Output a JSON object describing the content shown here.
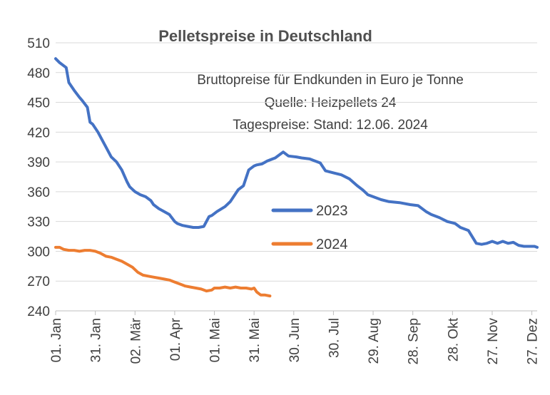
{
  "chart_data": {
    "type": "line",
    "title": "Pelletspreise in Deutschland",
    "subtitle_lines": [
      "Bruttopreise für Endkunden in Euro je Tonne",
      "Quelle: Heizpellets 24",
      "Tagespreise: Stand: 12.06. 2024"
    ],
    "xlabel": "",
    "ylabel": "",
    "ylim": [
      240,
      510
    ],
    "yticks": [
      240,
      270,
      300,
      330,
      360,
      390,
      420,
      450,
      480,
      510
    ],
    "xlim": [
      0,
      364
    ],
    "xticks": [
      {
        "day": 0,
        "label": "01. Jan"
      },
      {
        "day": 30,
        "label": "31. Jan"
      },
      {
        "day": 60,
        "label": "02. Mär"
      },
      {
        "day": 90,
        "label": "01. Apr"
      },
      {
        "day": 120,
        "label": "01. Mai"
      },
      {
        "day": 150,
        "label": "31. Mai"
      },
      {
        "day": 180,
        "label": "30. Jun"
      },
      {
        "day": 210,
        "label": "30. Jul"
      },
      {
        "day": 240,
        "label": "29. Aug"
      },
      {
        "day": 270,
        "label": "28. Sep"
      },
      {
        "day": 300,
        "label": "28. Okt"
      },
      {
        "day": 330,
        "label": "27. Nov"
      },
      {
        "day": 360,
        "label": "27. Dez"
      }
    ],
    "grid": "horizontal",
    "legend_position": "center",
    "series": [
      {
        "name": "2023",
        "color": "#4472C4",
        "x": [
          0,
          3,
          8,
          10,
          14,
          18,
          20,
          24,
          26,
          28,
          32,
          36,
          38,
          42,
          46,
          50,
          54,
          56,
          60,
          64,
          68,
          72,
          74,
          78,
          82,
          86,
          90,
          92,
          96,
          100,
          104,
          108,
          112,
          116,
          118,
          122,
          128,
          132,
          138,
          142,
          146,
          150,
          152,
          156,
          160,
          166,
          172,
          176,
          182,
          186,
          192,
          196,
          200,
          204,
          210,
          216,
          222,
          228,
          232,
          236,
          240,
          246,
          252,
          260,
          268,
          274,
          280,
          284,
          290,
          296,
          302,
          306,
          312,
          318,
          322,
          326,
          330,
          334,
          338,
          342,
          346,
          350,
          354,
          358,
          362,
          364
        ],
        "values": [
          494,
          490,
          485,
          470,
          462,
          455,
          452,
          445,
          430,
          428,
          420,
          410,
          405,
          395,
          390,
          382,
          370,
          365,
          360,
          357,
          355,
          351,
          347,
          343,
          340,
          337,
          330,
          328,
          326,
          325,
          324,
          324,
          325,
          335,
          336,
          340,
          345,
          350,
          362,
          366,
          382,
          386,
          387,
          388,
          391,
          394,
          400,
          396,
          395,
          394,
          393,
          391,
          389,
          381,
          379,
          377,
          373,
          366,
          362,
          357,
          355,
          352,
          350,
          349,
          347,
          346,
          340,
          337,
          334,
          330,
          328,
          324,
          321,
          308,
          307,
          308,
          310,
          308,
          310,
          308,
          309,
          306,
          305,
          305,
          305,
          304
        ]
      },
      {
        "name": "2024",
        "color": "#ED7D31",
        "x": [
          0,
          3,
          6,
          10,
          14,
          18,
          22,
          26,
          30,
          34,
          38,
          42,
          46,
          50,
          54,
          58,
          62,
          66,
          70,
          74,
          78,
          82,
          86,
          90,
          94,
          98,
          102,
          106,
          110,
          114,
          118,
          120,
          124,
          128,
          132,
          136,
          140,
          144,
          148,
          150,
          152,
          155,
          158,
          162
        ],
        "values": [
          304,
          304,
          302,
          301,
          301,
          300,
          301,
          301,
          300,
          298,
          295,
          294,
          292,
          290,
          287,
          284,
          279,
          276,
          275,
          274,
          273,
          272,
          271,
          269,
          267,
          265,
          264,
          263,
          262,
          260,
          261,
          263,
          263,
          264,
          263,
          264,
          263,
          263,
          262,
          263,
          259,
          256,
          256,
          255
        ]
      }
    ]
  }
}
